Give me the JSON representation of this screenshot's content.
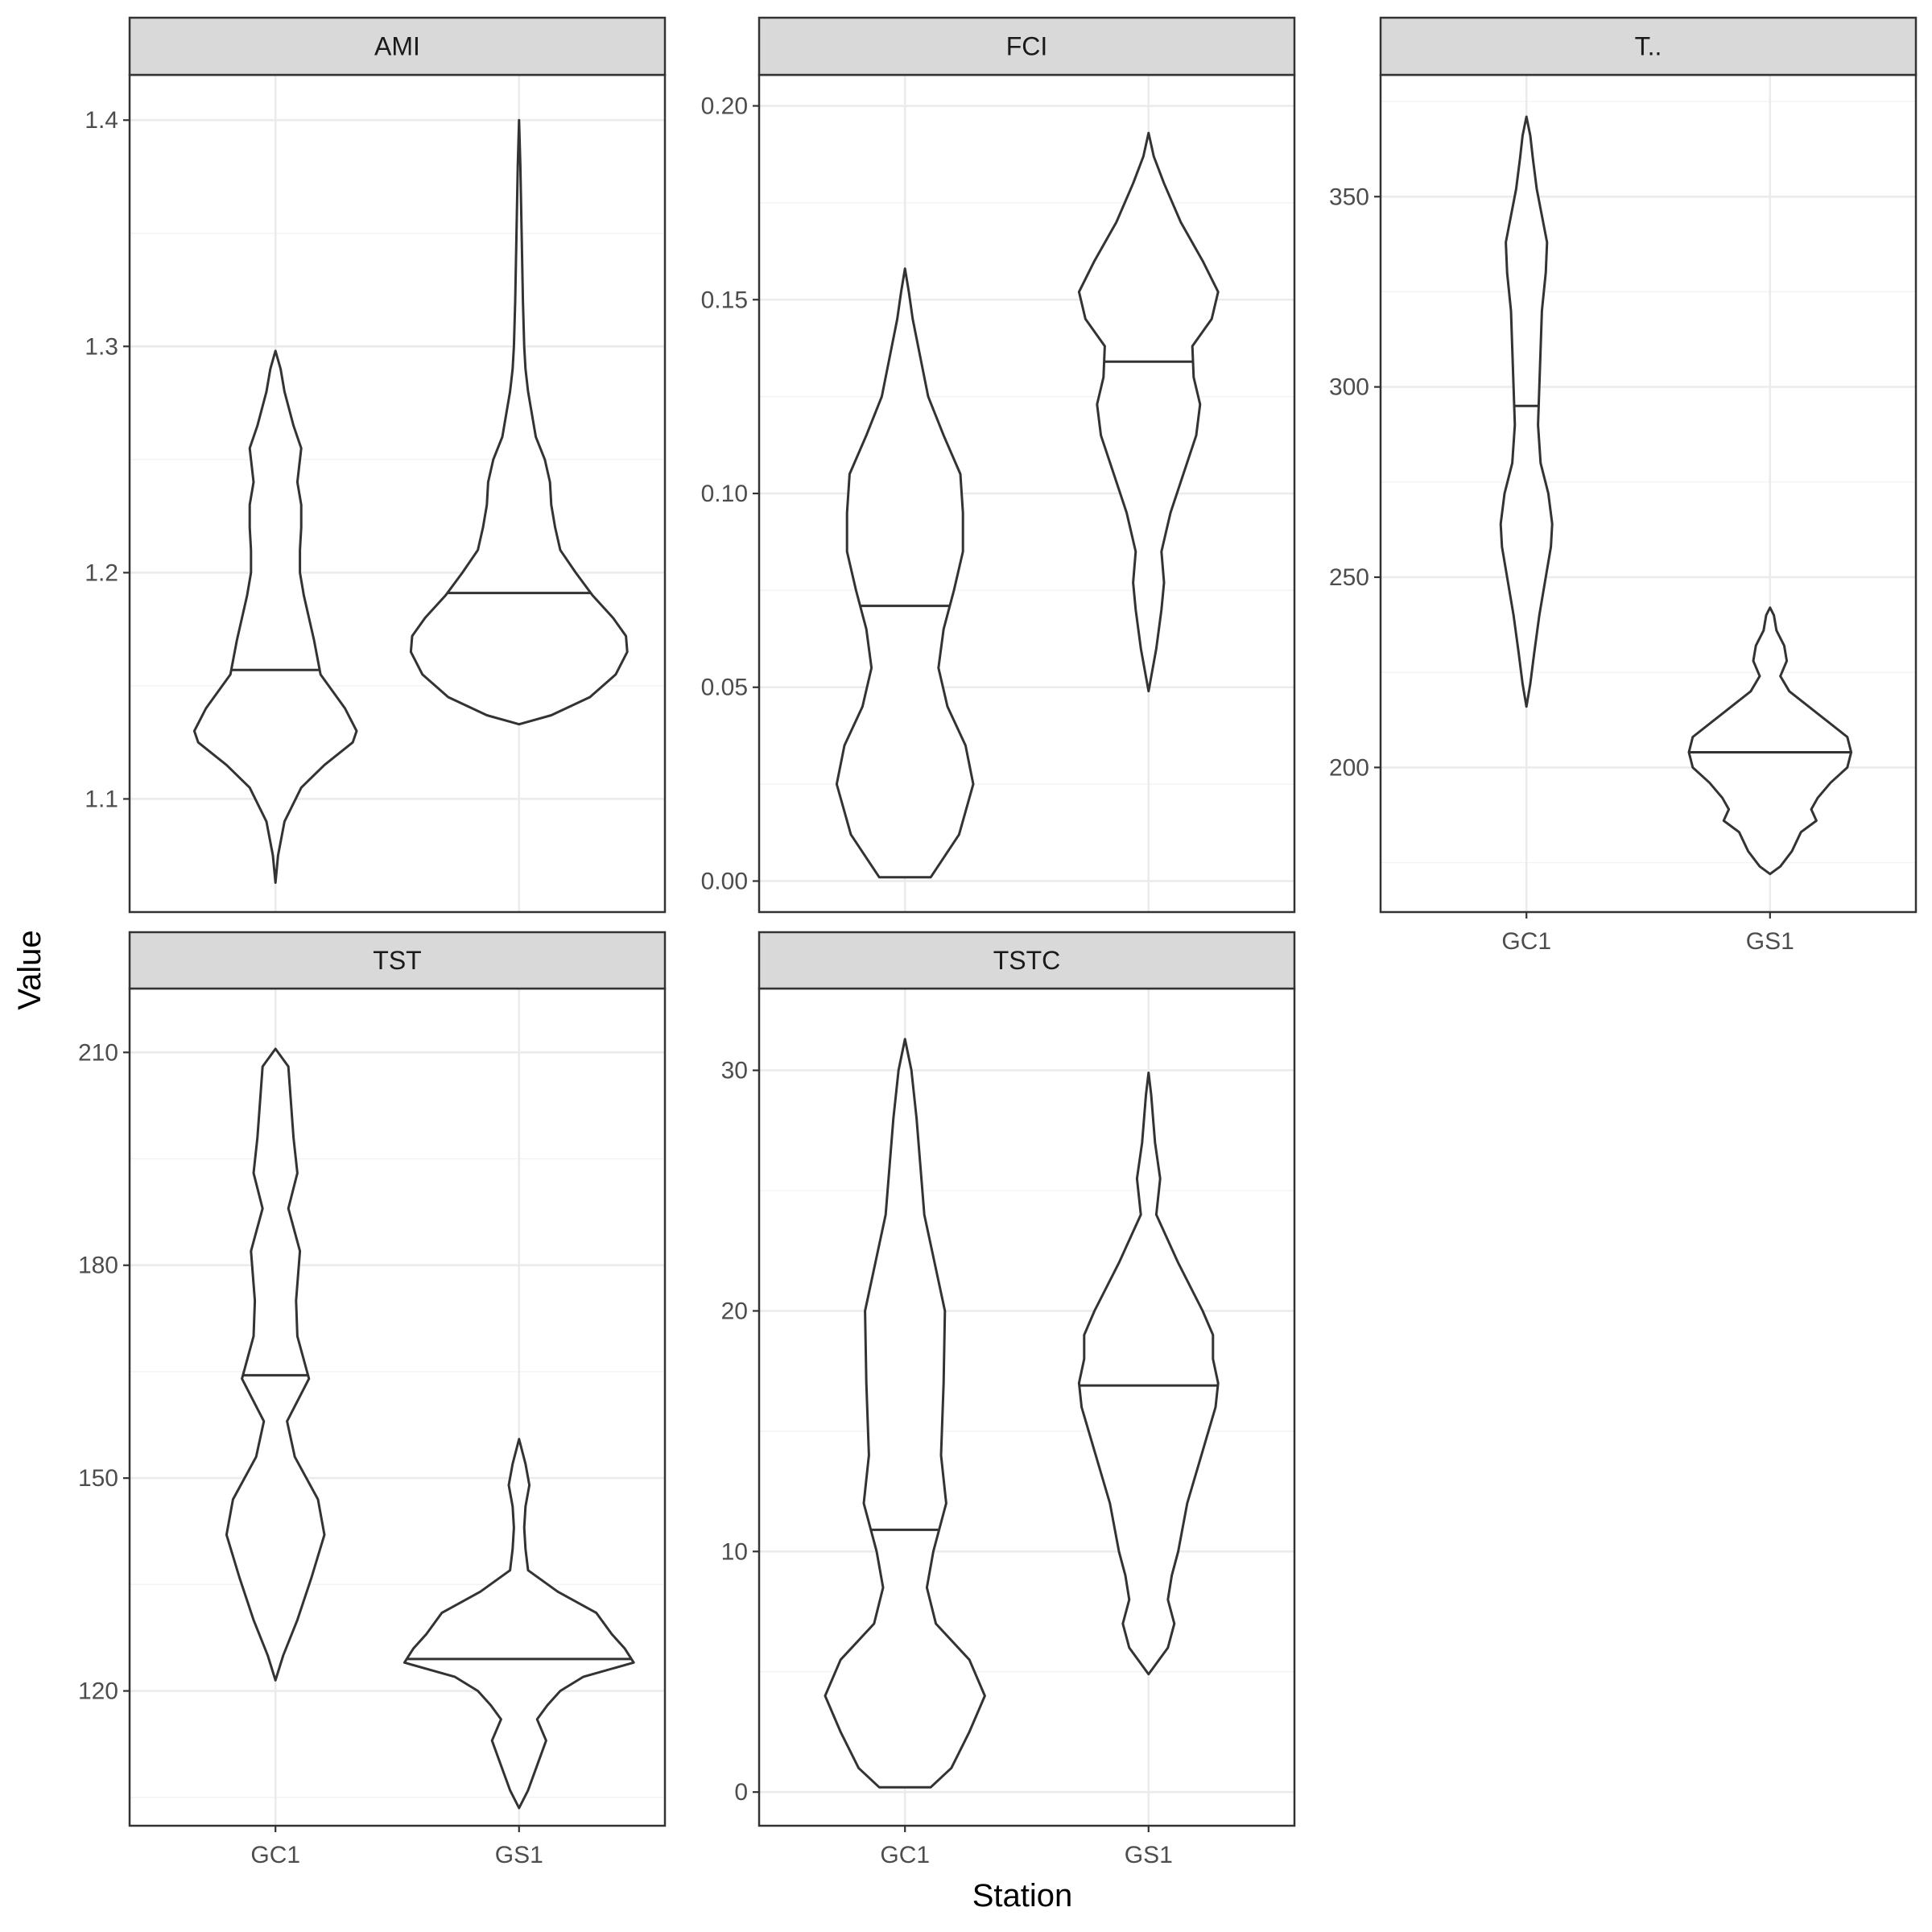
{
  "xlabel": "Station",
  "ylabel": "Value",
  "chart_data": [
    {
      "type": "violin",
      "title": "AMI",
      "categories": [
        "GC1",
        "GS1"
      ],
      "ylim": [
        1.05,
        1.42
      ],
      "yticks": [
        1.1,
        1.2,
        1.3,
        1.4
      ],
      "show_x_ticks": false,
      "series": [
        {
          "category": "GC1",
          "min": 1.063,
          "max": 1.298,
          "median": 1.157,
          "profile": [
            [
              1.063,
              0.0
            ],
            [
              1.075,
              0.02
            ],
            [
              1.09,
              0.07
            ],
            [
              1.105,
              0.2
            ],
            [
              1.115,
              0.38
            ],
            [
              1.125,
              0.6
            ],
            [
              1.13,
              0.63
            ],
            [
              1.14,
              0.54
            ],
            [
              1.155,
              0.35
            ],
            [
              1.17,
              0.3
            ],
            [
              1.18,
              0.26
            ],
            [
              1.19,
              0.22
            ],
            [
              1.2,
              0.19
            ],
            [
              1.21,
              0.19
            ],
            [
              1.22,
              0.2
            ],
            [
              1.23,
              0.2
            ],
            [
              1.24,
              0.17
            ],
            [
              1.255,
              0.2
            ],
            [
              1.265,
              0.14
            ],
            [
              1.28,
              0.07
            ],
            [
              1.29,
              0.04
            ],
            [
              1.298,
              0.0
            ]
          ]
        },
        {
          "category": "GS1",
          "min": 1.133,
          "max": 1.4,
          "median": 1.191,
          "profile": [
            [
              1.133,
              0.0
            ],
            [
              1.137,
              0.25
            ],
            [
              1.145,
              0.55
            ],
            [
              1.155,
              0.75
            ],
            [
              1.165,
              0.84
            ],
            [
              1.172,
              0.83
            ],
            [
              1.18,
              0.73
            ],
            [
              1.19,
              0.57
            ],
            [
              1.2,
              0.44
            ],
            [
              1.21,
              0.32
            ],
            [
              1.22,
              0.28
            ],
            [
              1.23,
              0.25
            ],
            [
              1.24,
              0.24
            ],
            [
              1.25,
              0.2
            ],
            [
              1.26,
              0.13
            ],
            [
              1.27,
              0.1
            ],
            [
              1.28,
              0.07
            ],
            [
              1.29,
              0.05
            ],
            [
              1.3,
              0.04
            ],
            [
              1.32,
              0.03
            ],
            [
              1.35,
              0.02
            ],
            [
              1.38,
              0.01
            ],
            [
              1.4,
              0.0
            ]
          ]
        }
      ]
    },
    {
      "type": "violin",
      "title": "FCI",
      "categories": [
        "GC1",
        "GS1"
      ],
      "ylim": [
        -0.008,
        0.208
      ],
      "yticks": [
        0.0,
        0.05,
        0.1,
        0.15,
        0.2
      ],
      "yticklabels": [
        "0.00",
        "0.05",
        "0.10",
        "0.15",
        "0.20"
      ],
      "show_x_ticks": false,
      "series": [
        {
          "category": "GC1",
          "min": 0.001,
          "max": 0.158,
          "median": 0.071,
          "profile": [
            [
              0.001,
              0.2
            ],
            [
              0.005,
              0.28
            ],
            [
              0.012,
              0.42
            ],
            [
              0.025,
              0.53
            ],
            [
              0.035,
              0.47
            ],
            [
              0.045,
              0.33
            ],
            [
              0.055,
              0.26
            ],
            [
              0.065,
              0.3
            ],
            [
              0.075,
              0.38
            ],
            [
              0.085,
              0.45
            ],
            [
              0.095,
              0.45
            ],
            [
              0.105,
              0.43
            ],
            [
              0.115,
              0.3
            ],
            [
              0.125,
              0.18
            ],
            [
              0.135,
              0.12
            ],
            [
              0.145,
              0.06
            ],
            [
              0.152,
              0.03
            ],
            [
              0.158,
              0.0
            ]
          ]
        },
        {
          "category": "GS1",
          "min": 0.049,
          "max": 0.193,
          "median": 0.134,
          "profile": [
            [
              0.049,
              0.0
            ],
            [
              0.06,
              0.06
            ],
            [
              0.07,
              0.1
            ],
            [
              0.077,
              0.12
            ],
            [
              0.085,
              0.1
            ],
            [
              0.095,
              0.17
            ],
            [
              0.105,
              0.27
            ],
            [
              0.115,
              0.37
            ],
            [
              0.123,
              0.4
            ],
            [
              0.13,
              0.35
            ],
            [
              0.138,
              0.34
            ],
            [
              0.145,
              0.49
            ],
            [
              0.152,
              0.54
            ],
            [
              0.16,
              0.42
            ],
            [
              0.17,
              0.25
            ],
            [
              0.18,
              0.12
            ],
            [
              0.187,
              0.04
            ],
            [
              0.193,
              0.0
            ]
          ]
        }
      ]
    },
    {
      "type": "violin",
      "title": "T..",
      "categories": [
        "GC1",
        "GS1"
      ],
      "ylim": [
        162,
        382
      ],
      "yticks": [
        200,
        250,
        300,
        350
      ],
      "show_x_ticks": true,
      "series": [
        {
          "category": "GC1",
          "min": 216,
          "max": 371,
          "median": 295,
          "profile": [
            [
              216,
              0.0
            ],
            [
              222,
              0.03
            ],
            [
              230,
              0.06
            ],
            [
              240,
              0.1
            ],
            [
              250,
              0.15
            ],
            [
              258,
              0.19
            ],
            [
              264,
              0.2
            ],
            [
              272,
              0.17
            ],
            [
              280,
              0.11
            ],
            [
              290,
              0.09
            ],
            [
              300,
              0.1
            ],
            [
              310,
              0.11
            ],
            [
              320,
              0.12
            ],
            [
              330,
              0.15
            ],
            [
              338,
              0.16
            ],
            [
              345,
              0.12
            ],
            [
              352,
              0.08
            ],
            [
              360,
              0.05
            ],
            [
              366,
              0.03
            ],
            [
              371,
              0.0
            ]
          ]
        },
        {
          "category": "GS1",
          "min": 172,
          "max": 242,
          "median": 204,
          "profile": [
            [
              172,
              0.0
            ],
            [
              174,
              0.08
            ],
            [
              178,
              0.17
            ],
            [
              183,
              0.24
            ],
            [
              186,
              0.36
            ],
            [
              189,
              0.32
            ],
            [
              192,
              0.37
            ],
            [
              196,
              0.47
            ],
            [
              200,
              0.6
            ],
            [
              204,
              0.63
            ],
            [
              208,
              0.6
            ],
            [
              212,
              0.45
            ],
            [
              216,
              0.3
            ],
            [
              220,
              0.15
            ],
            [
              224,
              0.08
            ],
            [
              228,
              0.13
            ],
            [
              232,
              0.11
            ],
            [
              236,
              0.05
            ],
            [
              240,
              0.03
            ],
            [
              242,
              0.0
            ]
          ]
        }
      ]
    },
    {
      "type": "violin",
      "title": "TST",
      "categories": [
        "GC1",
        "GS1"
      ],
      "ylim": [
        101,
        219
      ],
      "yticks": [
        120,
        150,
        180,
        210
      ],
      "show_x_ticks": true,
      "series": [
        {
          "category": "GC1",
          "min": 121.5,
          "max": 210.5,
          "median": 164.5,
          "profile": [
            [
              121.5,
              0.0
            ],
            [
              125,
              0.06
            ],
            [
              130,
              0.17
            ],
            [
              136,
              0.28
            ],
            [
              142,
              0.38
            ],
            [
              147,
              0.33
            ],
            [
              153,
              0.15
            ],
            [
              158,
              0.09
            ],
            [
              164,
              0.26
            ],
            [
              170,
              0.17
            ],
            [
              175,
              0.16
            ],
            [
              182,
              0.19
            ],
            [
              188,
              0.1
            ],
            [
              193,
              0.17
            ],
            [
              198,
              0.14
            ],
            [
              203,
              0.12
            ],
            [
              208,
              0.1
            ],
            [
              210.5,
              0.0
            ]
          ]
        },
        {
          "category": "GS1",
          "min": 103.5,
          "max": 155.5,
          "median": 124.5,
          "profile": [
            [
              103.5,
              0.0
            ],
            [
              106,
              0.07
            ],
            [
              110,
              0.15
            ],
            [
              113,
              0.21
            ],
            [
              116,
              0.14
            ],
            [
              118,
              0.22
            ],
            [
              120,
              0.32
            ],
            [
              122,
              0.5
            ],
            [
              124,
              0.89
            ],
            [
              126,
              0.82
            ],
            [
              128,
              0.72
            ],
            [
              131,
              0.6
            ],
            [
              134,
              0.3
            ],
            [
              137,
              0.07
            ],
            [
              140,
              0.05
            ],
            [
              143,
              0.04
            ],
            [
              146,
              0.05
            ],
            [
              149,
              0.08
            ],
            [
              152,
              0.05
            ],
            [
              155.5,
              0.0
            ]
          ]
        }
      ]
    },
    {
      "type": "violin",
      "title": "TSTC",
      "categories": [
        "GC1",
        "GS1"
      ],
      "ylim": [
        -1.4,
        33.4
      ],
      "yticks": [
        0,
        10,
        20,
        30
      ],
      "show_x_ticks": true,
      "series": [
        {
          "category": "GC1",
          "min": 0.2,
          "max": 31.3,
          "median": 10.9,
          "profile": [
            [
              0.2,
              0.2
            ],
            [
              1,
              0.36
            ],
            [
              2.5,
              0.5
            ],
            [
              4,
              0.62
            ],
            [
              5.5,
              0.5
            ],
            [
              7,
              0.24
            ],
            [
              8.5,
              0.17
            ],
            [
              10,
              0.22
            ],
            [
              12,
              0.32
            ],
            [
              14,
              0.28
            ],
            [
              17,
              0.3
            ],
            [
              20,
              0.31
            ],
            [
              22,
              0.23
            ],
            [
              24,
              0.15
            ],
            [
              26,
              0.12
            ],
            [
              28,
              0.09
            ],
            [
              30,
              0.05
            ],
            [
              31.3,
              0.0
            ]
          ]
        },
        {
          "category": "GS1",
          "min": 4.9,
          "max": 29.9,
          "median": 16.9,
          "profile": [
            [
              4.9,
              0.0
            ],
            [
              6,
              0.15
            ],
            [
              7,
              0.2
            ],
            [
              8,
              0.15
            ],
            [
              9,
              0.18
            ],
            [
              10,
              0.23
            ],
            [
              12,
              0.3
            ],
            [
              14,
              0.41
            ],
            [
              16,
              0.52
            ],
            [
              17,
              0.54
            ],
            [
              18,
              0.5
            ],
            [
              19,
              0.5
            ],
            [
              20,
              0.42
            ],
            [
              22,
              0.23
            ],
            [
              24,
              0.06
            ],
            [
              25.5,
              0.09
            ],
            [
              27,
              0.05
            ],
            [
              29,
              0.02
            ],
            [
              29.9,
              0.0
            ]
          ]
        }
      ]
    }
  ]
}
